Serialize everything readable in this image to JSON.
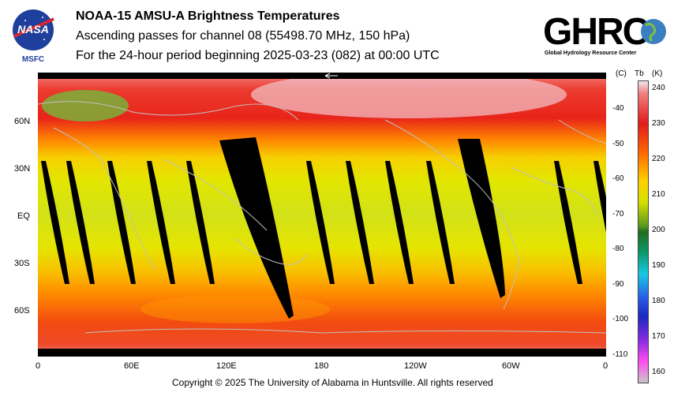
{
  "header": {
    "title": "NOAA-15 AMSU-A Brightness Temperatures",
    "subtitle": "Ascending passes for channel 08 (55498.70 MHz, 150 hPa)",
    "period": "For the 24-hour period beginning 2025-03-23 (082) at 00:00 UTC"
  },
  "logos": {
    "nasa": "NASA",
    "msfc": "MSFC",
    "ghrc": "GHRC",
    "ghrc_full": "Global Hydrology Resource Center"
  },
  "map": {
    "lat_labels": [
      "60N",
      "30N",
      "EQ",
      "30S",
      "60S"
    ],
    "lon_labels": [
      "0",
      "60E",
      "120E",
      "180",
      "120W",
      "60W",
      "0"
    ],
    "colors": {
      "warm": "#e31a1c",
      "orange": "#ff8c00",
      "yellow": "#e2e600",
      "green": "#6aaa2a",
      "pink": "#f2c4cc",
      "gap": "#000000"
    }
  },
  "colorbar": {
    "c_header": "(C)",
    "tb_header": "Tb",
    "k_header": "(K)",
    "celsius": [
      "-40",
      "-50",
      "-60",
      "-70",
      "-80",
      "-90",
      "-100",
      "-110"
    ],
    "kelvin": [
      "240",
      "230",
      "220",
      "210",
      "200",
      "190",
      "180",
      "170",
      "160"
    ]
  },
  "footer": {
    "copyright": "Copyright © 2025 The University of Alabama in Huntsville.  All rights reserved"
  }
}
